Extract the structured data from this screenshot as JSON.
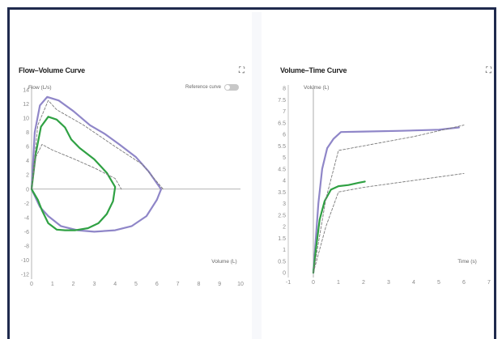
{
  "left_panel": {
    "title": "Flow–Volume Curve",
    "reference_toggle_label": "Reference curve",
    "reference_on": false,
    "expand_icon": "expand-icon"
  },
  "right_panel": {
    "title": "Volume–Time Curve",
    "expand_icon": "expand-icon"
  },
  "chart_data": [
    {
      "type": "line",
      "title": "Flow–Volume Curve",
      "xlabel": "Volume (L)",
      "ylabel": "Flow (L/s)",
      "xlim": [
        0,
        10
      ],
      "ylim": [
        -12,
        14
      ],
      "xticks": [
        0,
        1,
        2,
        3,
        4,
        5,
        6,
        7,
        8,
        9,
        10
      ],
      "yticks": [
        -12,
        -10,
        -8,
        -6,
        -4,
        -2,
        0,
        2,
        4,
        6,
        8,
        10,
        12,
        14
      ],
      "series": [
        {
          "color": "#8f86c8",
          "style": "solid",
          "points": [
            [
              0,
              0
            ],
            [
              0.15,
              8
            ],
            [
              0.4,
              11.8
            ],
            [
              0.75,
              13
            ],
            [
              1.3,
              12.5
            ],
            [
              2,
              11
            ],
            [
              2.8,
              9
            ],
            [
              3.5,
              7.8
            ],
            [
              4.2,
              6.3
            ],
            [
              5,
              4.5
            ],
            [
              5.6,
              2.5
            ],
            [
              6.1,
              0.4
            ],
            [
              6.2,
              0
            ],
            [
              6,
              -1.5
            ],
            [
              5.5,
              -3.8
            ],
            [
              4.8,
              -5.2
            ],
            [
              4,
              -5.8
            ],
            [
              3,
              -6
            ],
            [
              2.2,
              -5.8
            ],
            [
              1.4,
              -5.2
            ],
            [
              0.8,
              -3.8
            ],
            [
              0.4,
              -2.5
            ],
            [
              0,
              0
            ]
          ]
        },
        {
          "color": "#2fa143",
          "style": "solid",
          "points": [
            [
              0,
              0
            ],
            [
              0.2,
              5
            ],
            [
              0.45,
              8.8
            ],
            [
              0.8,
              10.2
            ],
            [
              1.2,
              9.8
            ],
            [
              1.6,
              8.7
            ],
            [
              1.9,
              7
            ],
            [
              2.3,
              5.8
            ],
            [
              3,
              4.2
            ],
            [
              3.6,
              2.3
            ],
            [
              4,
              0.3
            ],
            [
              3.9,
              -1.7
            ],
            [
              3.6,
              -3.5
            ],
            [
              3.2,
              -4.8
            ],
            [
              2.7,
              -5.5
            ],
            [
              2.1,
              -5.8
            ],
            [
              1.6,
              -5.8
            ],
            [
              1.2,
              -5.7
            ],
            [
              0.8,
              -4.8
            ],
            [
              0.5,
              -3
            ],
            [
              0.3,
              -1.5
            ],
            [
              0,
              0
            ]
          ]
        },
        {
          "color": "#7a7a7a",
          "style": "dashed",
          "points": [
            [
              0,
              0
            ],
            [
              0.3,
              9
            ],
            [
              0.8,
              12.5
            ],
            [
              1.2,
              11.2
            ],
            [
              2.5,
              9
            ],
            [
              4,
              6
            ],
            [
              5.3,
              3.5
            ],
            [
              6.3,
              0
            ]
          ]
        },
        {
          "color": "#7a7a7a",
          "style": "dashed",
          "points": [
            [
              0,
              0
            ],
            [
              0.2,
              4.5
            ],
            [
              0.5,
              6.3
            ],
            [
              1,
              5.5
            ],
            [
              2,
              4.3
            ],
            [
              3,
              3
            ],
            [
              4,
              1.5
            ],
            [
              4.3,
              0
            ]
          ]
        }
      ]
    },
    {
      "type": "line",
      "title": "Volume–Time Curve",
      "xlabel": "Time (s)",
      "ylabel": "Volume (L)",
      "xlim": [
        -1,
        7
      ],
      "ylim": [
        0,
        8
      ],
      "xticks": [
        -1,
        0,
        1,
        2,
        3,
        4,
        5,
        6,
        7
      ],
      "yticks": [
        0,
        0.5,
        1,
        1.5,
        2,
        2.5,
        3,
        3.5,
        4,
        4.5,
        5,
        5.5,
        6,
        6.5,
        7,
        7.5,
        8
      ],
      "series": [
        {
          "color": "#8f86c8",
          "style": "solid",
          "points": [
            [
              0,
              0
            ],
            [
              0.1,
              1.5
            ],
            [
              0.2,
              3
            ],
            [
              0.35,
              4.5
            ],
            [
              0.55,
              5.4
            ],
            [
              0.8,
              5.8
            ],
            [
              1.1,
              6.1
            ],
            [
              2,
              6.12
            ],
            [
              3.5,
              6.15
            ],
            [
              5,
              6.2
            ],
            [
              5.8,
              6.3
            ]
          ]
        },
        {
          "color": "#2fa143",
          "style": "solid",
          "points": [
            [
              0,
              0
            ],
            [
              0.1,
              1
            ],
            [
              0.25,
              2.3
            ],
            [
              0.45,
              3.1
            ],
            [
              0.7,
              3.6
            ],
            [
              1,
              3.75
            ],
            [
              1.4,
              3.8
            ],
            [
              1.8,
              3.9
            ],
            [
              2.05,
              3.95
            ]
          ]
        },
        {
          "color": "#7a7a7a",
          "style": "dashed",
          "points": [
            [
              0,
              0
            ],
            [
              0.5,
              3.2
            ],
            [
              1,
              5.3
            ],
            [
              2,
              5.5
            ],
            [
              4,
              5.9
            ],
            [
              6,
              6.4
            ]
          ]
        },
        {
          "color": "#7a7a7a",
          "style": "dashed",
          "points": [
            [
              0,
              0
            ],
            [
              0.5,
              2
            ],
            [
              1,
              3.5
            ],
            [
              2,
              3.7
            ],
            [
              4,
              4
            ],
            [
              6,
              4.3
            ]
          ]
        }
      ]
    }
  ]
}
